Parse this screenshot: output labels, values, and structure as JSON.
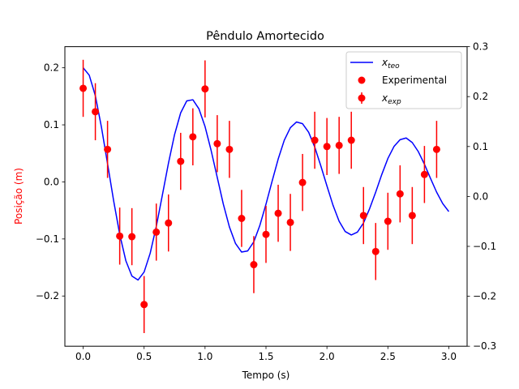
{
  "chart_data": {
    "type": "line",
    "title": "Pêndulo Amortecido",
    "xlabel": "Tempo (s)",
    "ylabel": "Posição (m)",
    "ylabel_color": "#ff0000",
    "xlim": [
      -0.15,
      3.15
    ],
    "ylim": [
      -0.288,
      0.237
    ],
    "y2lim": [
      -0.3,
      0.3
    ],
    "xticks": [
      0.0,
      0.5,
      1.0,
      1.5,
      2.0,
      2.5,
      3.0
    ],
    "xtick_labels": [
      "0.0",
      "0.5",
      "1.0",
      "1.5",
      "2.0",
      "2.5",
      "3.0"
    ],
    "yticks": [
      0.2,
      0.1,
      0.0,
      -0.1,
      -0.2
    ],
    "ytick_labels": [
      "0.2",
      "0.1",
      "0.0",
      "−0.1",
      "−0.2"
    ],
    "y2ticks": [
      0.3,
      0.2,
      0.1,
      0.0,
      -0.1,
      -0.2,
      -0.3
    ],
    "y2tick_labels": [
      "0.3",
      "0.2",
      "0.1",
      "0.0",
      "−0.1",
      "−0.2",
      "−0.3"
    ],
    "legend_placement": "top-right",
    "legend": [
      {
        "label_main": "x",
        "label_sub": "teo",
        "kind": "line",
        "color": "#0000ff"
      },
      {
        "label_main": "Experimental",
        "label_sub": "",
        "kind": "marker",
        "color": "#ff0000"
      },
      {
        "label_main": "x",
        "label_sub": "exp",
        "kind": "errorbar",
        "color": "#ff0000"
      }
    ],
    "series": [
      {
        "kind": "line",
        "color": "#0000ff",
        "x": [
          0.0,
          0.05,
          0.1,
          0.15,
          0.2,
          0.25,
          0.3,
          0.35,
          0.4,
          0.45,
          0.5,
          0.55,
          0.6,
          0.65,
          0.7,
          0.75,
          0.8,
          0.85,
          0.9,
          0.95,
          1.0,
          1.05,
          1.1,
          1.15,
          1.2,
          1.25,
          1.3,
          1.35,
          1.4,
          1.45,
          1.5,
          1.55,
          1.6,
          1.65,
          1.7,
          1.75,
          1.8,
          1.85,
          1.9,
          1.95,
          2.0,
          2.05,
          2.1,
          2.15,
          2.2,
          2.25,
          2.3,
          2.35,
          2.4,
          2.45,
          2.5,
          2.55,
          2.6,
          2.65,
          2.7,
          2.75,
          2.8,
          2.85,
          2.9,
          2.95,
          3.0
        ],
        "y": [
          0.2,
          0.187,
          0.151,
          0.096,
          0.032,
          -0.033,
          -0.092,
          -0.138,
          -0.165,
          -0.172,
          -0.158,
          -0.125,
          -0.078,
          -0.023,
          0.033,
          0.083,
          0.121,
          0.142,
          0.144,
          0.128,
          0.097,
          0.055,
          0.008,
          -0.039,
          -0.079,
          -0.108,
          -0.123,
          -0.121,
          -0.105,
          -0.076,
          -0.039,
          0.001,
          0.04,
          0.073,
          0.095,
          0.105,
          0.102,
          0.087,
          0.061,
          0.028,
          -0.007,
          -0.041,
          -0.069,
          -0.087,
          -0.093,
          -0.088,
          -0.072,
          -0.047,
          -0.018,
          0.013,
          0.041,
          0.062,
          0.074,
          0.077,
          0.069,
          0.053,
          0.031,
          0.006,
          -0.018,
          -0.038,
          -0.052
        ]
      },
      {
        "name": "Experimental",
        "kind": "errorbar",
        "color": "#ff0000",
        "error": 0.05,
        "x": [
          0.0,
          0.1,
          0.2,
          0.3,
          0.4,
          0.5,
          0.6,
          0.7,
          0.8,
          0.9,
          1.0,
          1.1,
          1.2,
          1.3,
          1.4,
          1.5,
          1.6,
          1.7,
          1.8,
          1.9,
          2.0,
          2.1,
          2.2,
          2.3,
          2.4,
          2.5,
          2.6,
          2.7,
          2.8,
          2.9
        ],
        "y": [
          0.164,
          0.123,
          0.057,
          -0.095,
          -0.096,
          -0.215,
          -0.088,
          -0.072,
          0.036,
          0.079,
          0.163,
          0.067,
          0.057,
          -0.064,
          -0.145,
          -0.092,
          -0.055,
          -0.071,
          -0.001,
          0.073,
          0.062,
          0.064,
          0.073,
          -0.059,
          -0.122,
          -0.069,
          -0.021,
          -0.059,
          0.013,
          0.057
        ]
      }
    ]
  }
}
